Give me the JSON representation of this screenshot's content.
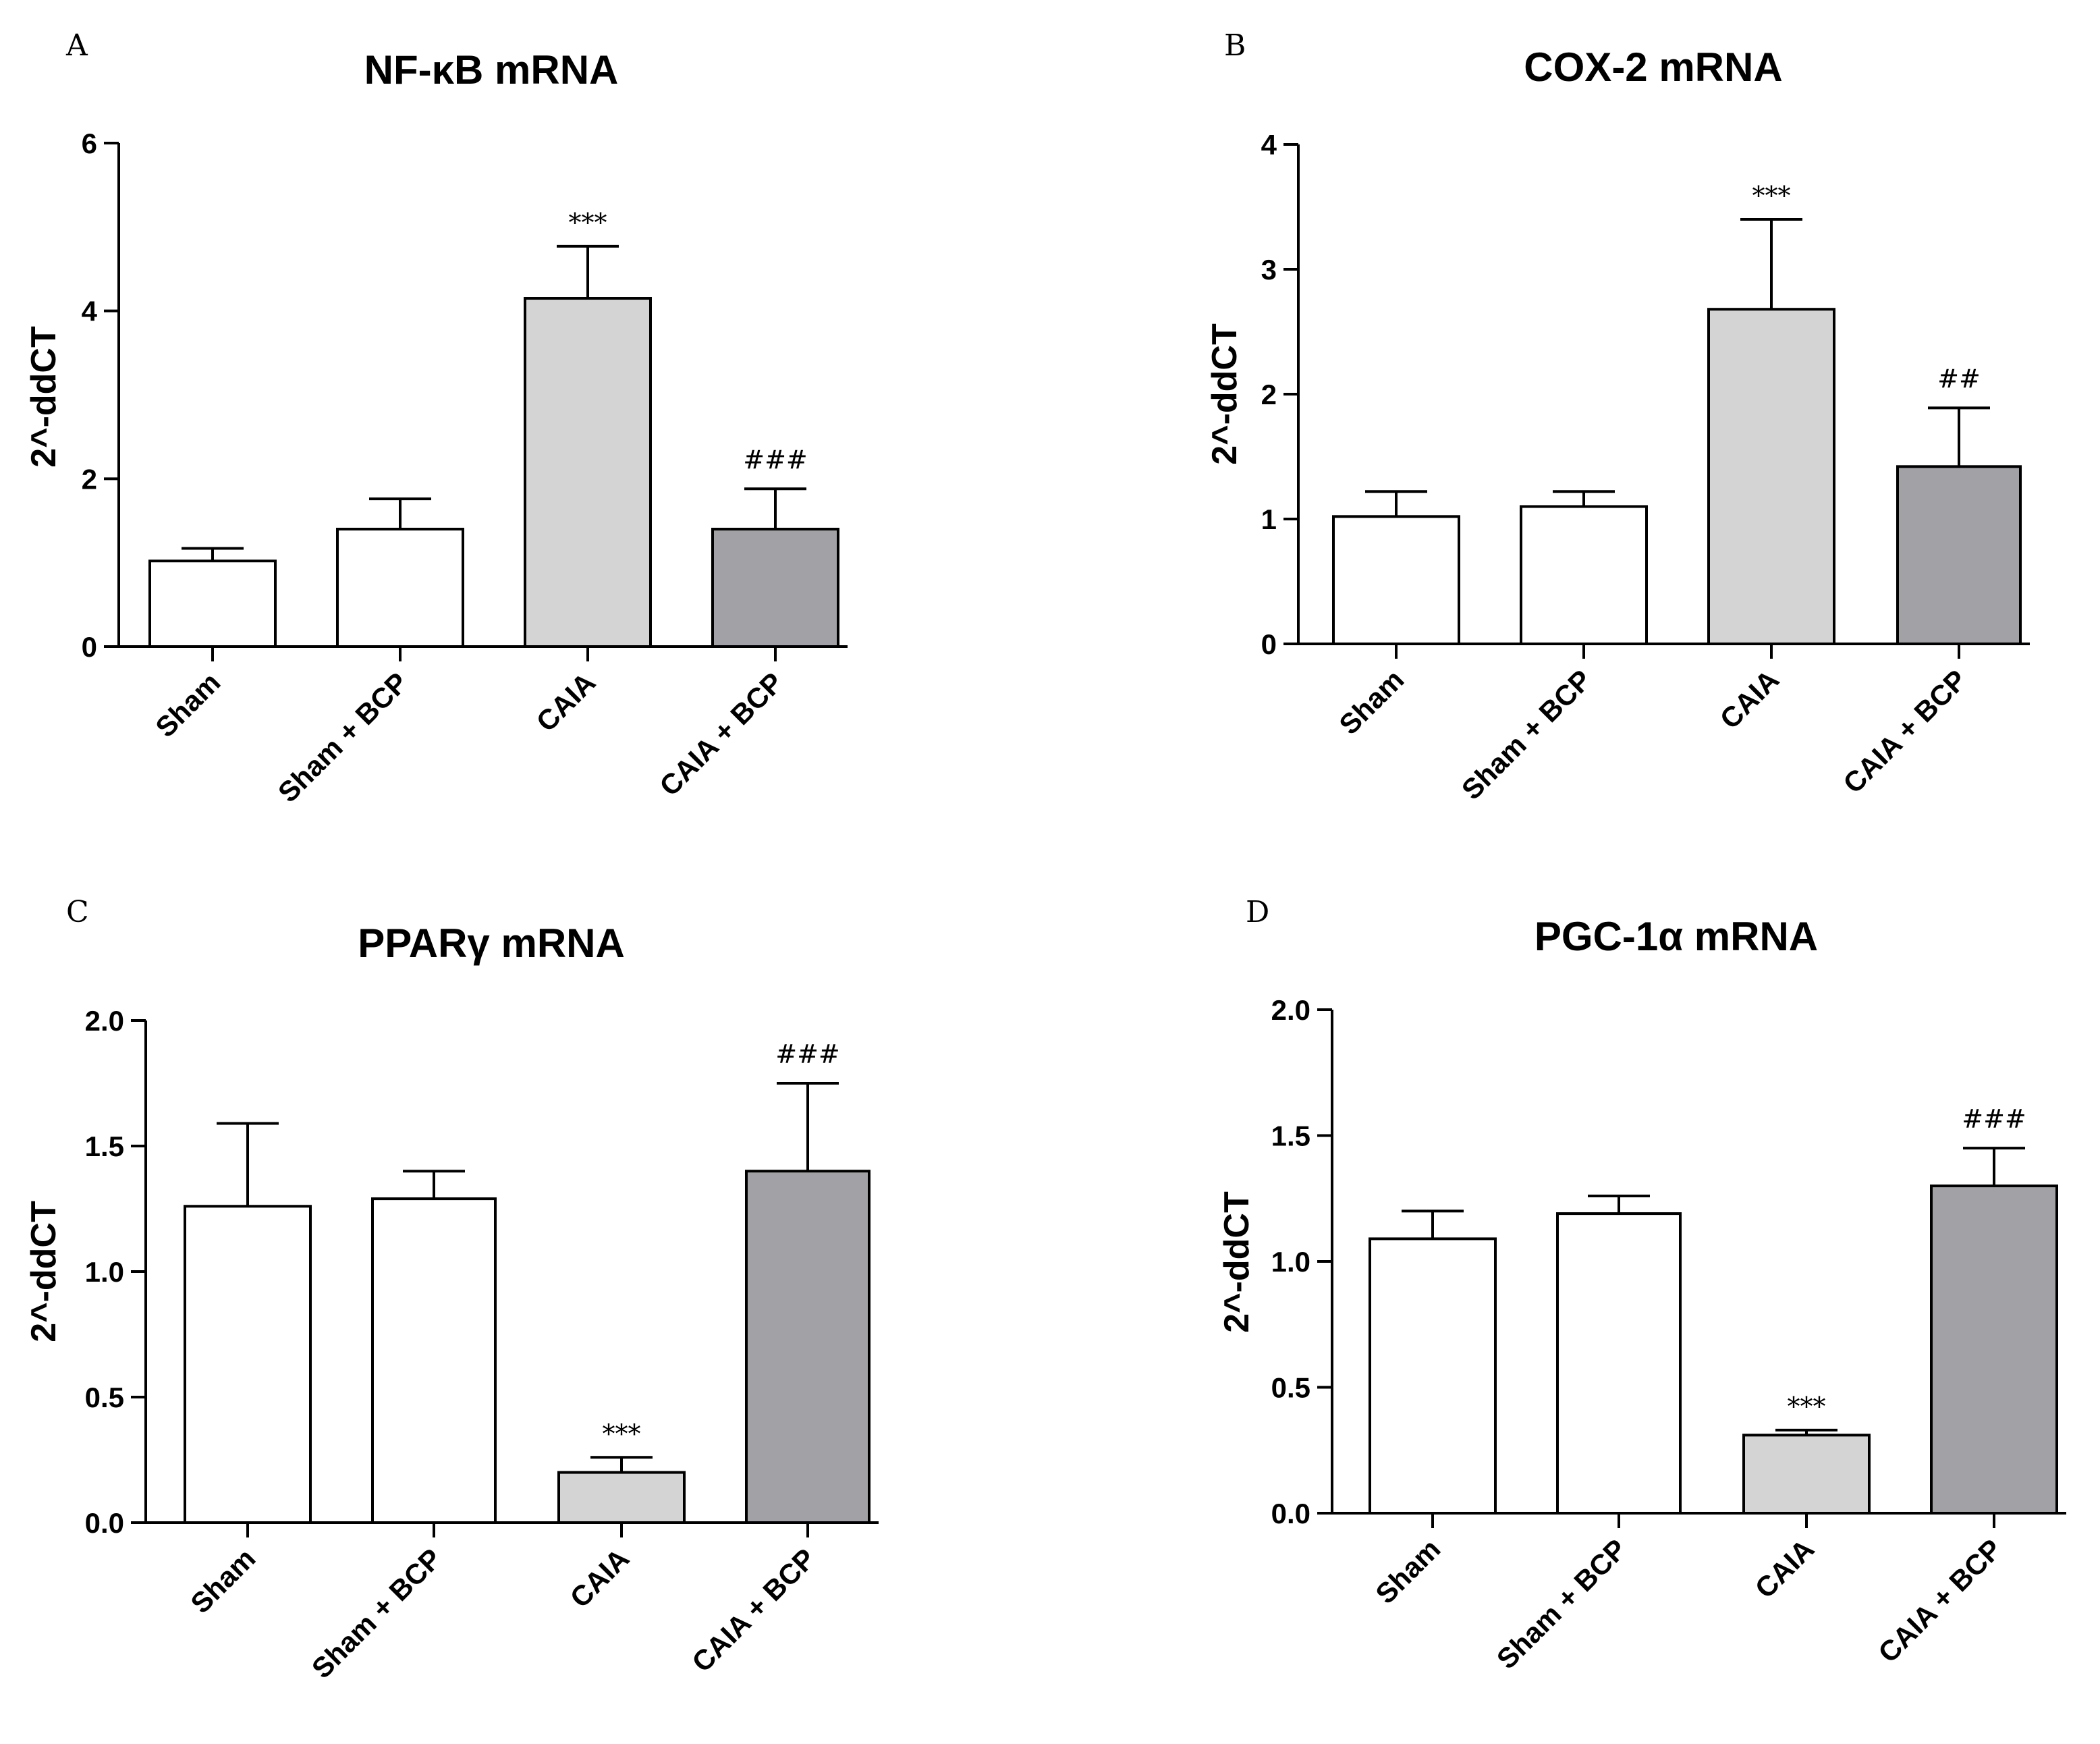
{
  "chart_data": [
    {
      "panel": "A",
      "type": "bar",
      "title": "NF-κB mRNA",
      "xlabel": "",
      "ylabel": "2^-ddCT",
      "ylim": [
        0,
        6
      ],
      "yticks": [
        0,
        2,
        4,
        6
      ],
      "ytick_labels": [
        "0",
        "2",
        "4",
        "6"
      ],
      "categories": [
        "Sham",
        "Sham + BCP",
        "CAIA",
        "CAIA + BCP"
      ],
      "values": [
        1.02,
        1.4,
        4.15,
        1.4
      ],
      "errors": [
        0.15,
        0.36,
        0.62,
        0.48
      ],
      "bar_colors": [
        "#ffffff",
        "#ffffff",
        "#d4d4d4",
        "#a2a2a6"
      ],
      "annotations": [
        "",
        "",
        "***",
        "###"
      ]
    },
    {
      "panel": "B",
      "type": "bar",
      "title": "COX-2 mRNA",
      "xlabel": "",
      "ylabel": "2^-ddCT",
      "ylim": [
        0,
        4
      ],
      "yticks": [
        0,
        1,
        2,
        3,
        4
      ],
      "ytick_labels": [
        "0",
        "1",
        "2",
        "3",
        "4"
      ],
      "categories": [
        "Sham",
        "Sham + BCP",
        "CAIA",
        "CAIA + BCP"
      ],
      "values": [
        1.02,
        1.1,
        2.68,
        1.42
      ],
      "errors": [
        0.2,
        0.12,
        0.72,
        0.47
      ],
      "bar_colors": [
        "#ffffff",
        "#ffffff",
        "#d4d4d4",
        "#a2a2a6"
      ],
      "annotations": [
        "",
        "",
        "***",
        "##"
      ]
    },
    {
      "panel": "C",
      "type": "bar",
      "title": "PPARγ mRNA",
      "xlabel": "",
      "ylabel": "2^-ddCT",
      "ylim": [
        0,
        2
      ],
      "yticks": [
        0,
        0.5,
        1,
        1.5,
        2
      ],
      "ytick_labels": [
        "0.0",
        "0.5",
        "1.0",
        "1.5",
        "2.0"
      ],
      "categories": [
        "Sham",
        "Sham + BCP",
        "CAIA",
        "CAIA + BCP"
      ],
      "values": [
        1.26,
        1.29,
        0.2,
        1.4
      ],
      "errors": [
        0.33,
        0.11,
        0.06,
        0.35
      ],
      "bar_colors": [
        "#ffffff",
        "#ffffff",
        "#d4d4d4",
        "#a2a2a6"
      ],
      "annotations": [
        "",
        "",
        "***",
        "###"
      ]
    },
    {
      "panel": "D",
      "type": "bar",
      "title": "PGC-1α mRNA",
      "xlabel": "",
      "ylabel": "2^-ddCT",
      "ylim": [
        0,
        2
      ],
      "yticks": [
        0,
        0.5,
        1,
        1.5,
        2
      ],
      "ytick_labels": [
        "0.0",
        "0.5",
        "1.0",
        "1.5",
        "2.0"
      ],
      "categories": [
        "Sham",
        "Sham + BCP",
        "CAIA",
        "CAIA + BCP"
      ],
      "values": [
        1.09,
        1.19,
        0.31,
        1.3
      ],
      "errors": [
        0.11,
        0.07,
        0.02,
        0.15
      ],
      "bar_colors": [
        "#ffffff",
        "#ffffff",
        "#d4d4d4",
        "#a2a2a6"
      ],
      "annotations": [
        "",
        "",
        "***",
        "###"
      ]
    }
  ]
}
